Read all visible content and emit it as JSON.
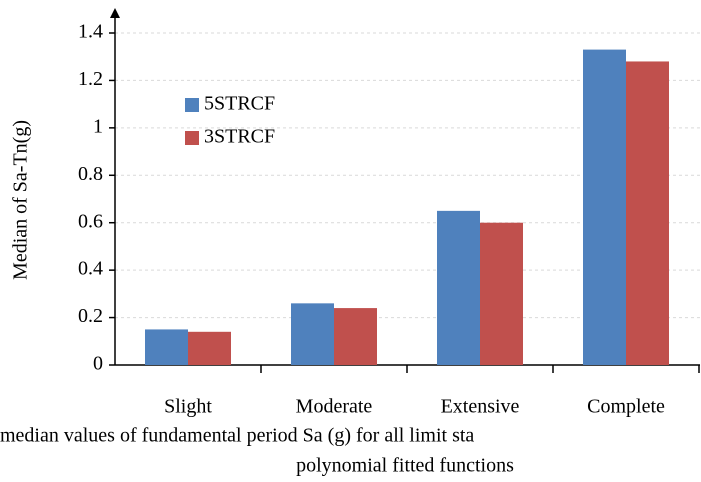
{
  "chart_data": {
    "type": "bar",
    "y_label": "Median of Sa-Tn(g)",
    "caption": [
      "median values of fundamental period Sa (g) for all limit sta",
      "polynomial fitted functions"
    ],
    "categories": [
      "Slight",
      "Moderate",
      "Extensive",
      "Complete"
    ],
    "series": [
      {
        "name": "5STRCF",
        "color": "#4f81bd",
        "values": [
          0.15,
          0.26,
          0.65,
          1.33
        ]
      },
      {
        "name": "3STRCF",
        "color": "#c0504d",
        "values": [
          0.14,
          0.24,
          0.6,
          1.28
        ]
      }
    ],
    "ylim": [
      0,
      1.4
    ],
    "yticks": [
      0,
      0.2,
      0.4,
      0.6,
      0.8,
      1,
      1.2,
      1.4
    ],
    "grid": true,
    "legend": "upper-left"
  }
}
